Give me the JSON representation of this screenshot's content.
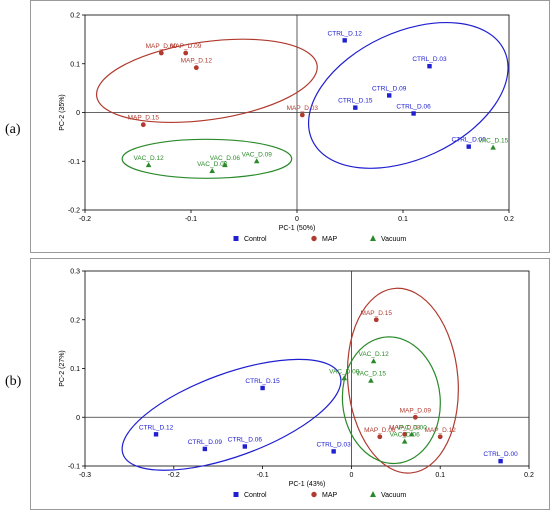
{
  "panels": [
    {
      "label": "(a)",
      "chart_data": {
        "type": "scatter",
        "xlabel": "PC-1 (50%)",
        "ylabel": "PC-2 (35%)",
        "xlim": [
          -0.2,
          0.2
        ],
        "ylim": [
          -0.2,
          0.2
        ],
        "xticks": [
          -0.2,
          -0.1,
          0,
          0.1,
          0.2
        ],
        "xtick_labels": [
          "-0.2",
          "-0.1",
          "0",
          "0.1",
          "0.2"
        ],
        "yticks": [
          -0.2,
          -0.1,
          0,
          0.1,
          0.2
        ],
        "ytick_labels": [
          "-0.2",
          "-0.1",
          "0",
          "0.1",
          "0.2"
        ],
        "legend_position": "bottom",
        "series": [
          {
            "name": "Control",
            "color": "#2020d0",
            "marker": "square",
            "points": [
              {
                "label": "CTRL_D.12",
                "x": 0.045,
                "y": 0.148
              },
              {
                "label": "CTRL_D.03",
                "x": 0.125,
                "y": 0.095
              },
              {
                "label": "CTRL_D.09",
                "x": 0.087,
                "y": 0.035
              },
              {
                "label": "CTRL_D.15",
                "x": 0.055,
                "y": 0.01
              },
              {
                "label": "CTRL_D.06",
                "x": 0.11,
                "y": -0.002
              },
              {
                "label": "CTRL_D.00",
                "x": 0.162,
                "y": -0.07
              }
            ]
          },
          {
            "name": "MAP",
            "color": "#b03a2e",
            "marker": "circle",
            "points": [
              {
                "label": "MAP_D.00",
                "x": -0.128,
                "y": 0.122
              },
              {
                "label": "MAP_D.09",
                "x": -0.105,
                "y": 0.122
              },
              {
                "label": "MAP_D.12",
                "x": -0.095,
                "y": 0.092
              },
              {
                "label": "MAP_D.03",
                "x": 0.005,
                "y": -0.005
              },
              {
                "label": "MAP_D.15",
                "x": -0.145,
                "y": -0.025
              }
            ]
          },
          {
            "name": "Vacuum",
            "color": "#2a8a2a",
            "marker": "triangle",
            "points": [
              {
                "label": "VAC_D.12",
                "x": -0.14,
                "y": -0.108
              },
              {
                "label": "VAC_D.00",
                "x": -0.08,
                "y": -0.12
              },
              {
                "label": "VAC_D.06",
                "x": -0.068,
                "y": -0.108
              },
              {
                "label": "VAC_D.09",
                "x": -0.038,
                "y": -0.1
              },
              {
                "label": "VAC_D.15",
                "x": 0.185,
                "y": -0.072
              }
            ]
          }
        ],
        "ellipses": [
          {
            "series": "MAP",
            "color": "#b03a2e",
            "cx": -0.085,
            "cy": 0.065,
            "rx": 0.105,
            "ry": 0.08,
            "angle": 8
          },
          {
            "series": "Control",
            "color": "#2020d0",
            "cx": 0.105,
            "cy": 0.035,
            "rx": 0.1,
            "ry": 0.13,
            "angle": 25
          },
          {
            "series": "Vacuum",
            "color": "#2a8a2a",
            "cx": -0.085,
            "cy": -0.095,
            "rx": 0.08,
            "ry": 0.04,
            "angle": 0
          }
        ]
      }
    },
    {
      "label": "(b)",
      "chart_data": {
        "type": "scatter",
        "xlabel": "PC-1 (43%)",
        "ylabel": "PC-2 (27%)",
        "xlim": [
          -0.3,
          0.2
        ],
        "ylim": [
          -0.1,
          0.3
        ],
        "xticks": [
          -0.3,
          -0.2,
          -0.1,
          0,
          0.1,
          0.2
        ],
        "xtick_labels": [
          "-0.3",
          "-0.2",
          "-0.1",
          "0",
          "0.1",
          "0.2"
        ],
        "yticks": [
          -0.1,
          0,
          0.1,
          0.2,
          0.3
        ],
        "ytick_labels": [
          "-0.1",
          "0",
          "0.1",
          "0.2",
          "0.3"
        ],
        "legend_position": "bottom",
        "series": [
          {
            "name": "Control",
            "color": "#2020d0",
            "marker": "square",
            "points": [
              {
                "label": "CTRL_D.15",
                "x": -0.1,
                "y": 0.06
              },
              {
                "label": "CTRL_D.12",
                "x": -0.22,
                "y": -0.035
              },
              {
                "label": "CTRL_D.09",
                "x": -0.165,
                "y": -0.065
              },
              {
                "label": "CTRL_D.06",
                "x": -0.12,
                "y": -0.06
              },
              {
                "label": "CTRL_D.03",
                "x": -0.02,
                "y": -0.07
              },
              {
                "label": "CTRL_D.00",
                "x": 0.168,
                "y": -0.09
              }
            ]
          },
          {
            "name": "MAP",
            "color": "#b03a2e",
            "marker": "circle",
            "points": [
              {
                "label": "MAP_D.15",
                "x": 0.028,
                "y": 0.2
              },
              {
                "label": "MAP_D.09",
                "x": 0.072,
                "y": 0.0
              },
              {
                "label": "MAP_D.06",
                "x": 0.032,
                "y": -0.04
              },
              {
                "label": "MAP_D.03",
                "x": 0.06,
                "y": -0.035
              },
              {
                "label": "MAP_D.12",
                "x": 0.1,
                "y": -0.04
              }
            ]
          },
          {
            "name": "Vacuum",
            "color": "#2a8a2a",
            "marker": "triangle",
            "points": [
              {
                "label": "VAC_D.12",
                "x": 0.025,
                "y": 0.115
              },
              {
                "label": "VAC_D.09",
                "x": -0.008,
                "y": 0.08
              },
              {
                "label": "VAC_D.15",
                "x": 0.022,
                "y": 0.075
              },
              {
                "label": "VAC_D.06",
                "x": 0.06,
                "y": -0.05
              },
              {
                "label": "VAC_D.00",
                "x": 0.068,
                "y": -0.035
              }
            ]
          }
        ],
        "ellipses": [
          {
            "series": "Control",
            "color": "#2020d0",
            "cx": -0.135,
            "cy": 0.005,
            "rx": 0.13,
            "ry": 0.085,
            "angle": 20
          },
          {
            "series": "MAP",
            "color": "#b03a2e",
            "cx": 0.058,
            "cy": 0.075,
            "rx": 0.062,
            "ry": 0.19,
            "angle": 5
          },
          {
            "series": "Vacuum",
            "color": "#2a8a2a",
            "cx": 0.045,
            "cy": 0.035,
            "rx": 0.055,
            "ry": 0.13,
            "angle": 5
          }
        ]
      }
    }
  ],
  "chart_data": [
    {
      "ref": "panels.0.chart_data"
    },
    {
      "ref": "panels.1.chart_data"
    }
  ]
}
